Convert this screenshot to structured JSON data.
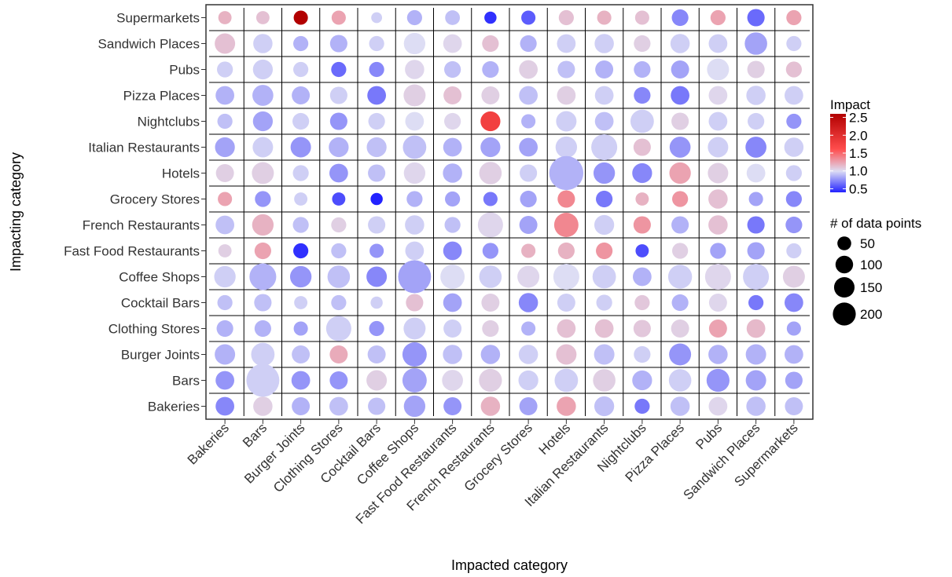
{
  "chart_data": {
    "type": "scatter",
    "xlabel": "Impacted category",
    "ylabel": "Impacting category",
    "x_categories": [
      "Bakeries",
      "Bars",
      "Burger Joints",
      "Clothing Stores",
      "Cocktail Bars",
      "Coffee Shops",
      "Fast Food Restaurants",
      "French Restaurants",
      "Grocery Stores",
      "Hotels",
      "Italian Restaurants",
      "Nightclubs",
      "Pizza Places",
      "Pubs",
      "Sandwich Places",
      "Supermarkets"
    ],
    "y_categories": [
      "Supermarkets",
      "Sandwich Places",
      "Pubs",
      "Pizza Places",
      "Nightclubs",
      "Italian Restaurants",
      "Hotels",
      "Grocery Stores",
      "French Restaurants",
      "Fast Food Restaurants",
      "Coffee Shops",
      "Cocktail Bars",
      "Clothing Stores",
      "Burger Joints",
      "Bars",
      "Bakeries"
    ],
    "impact": [
      [
        1.3,
        1.2,
        2.6,
        1.4,
        0.95,
        0.85,
        0.9,
        0.4,
        0.55,
        1.2,
        1.3,
        1.2,
        0.7,
        1.4,
        0.6,
        1.4
      ],
      [
        1.2,
        0.95,
        0.85,
        0.85,
        0.95,
        1.0,
        1.05,
        1.2,
        0.85,
        0.95,
        0.95,
        1.1,
        0.95,
        0.95,
        0.8,
        0.95
      ],
      [
        0.95,
        0.95,
        0.95,
        0.6,
        0.7,
        1.05,
        0.9,
        0.85,
        1.1,
        0.9,
        0.85,
        0.85,
        0.8,
        1.0,
        1.1,
        1.2
      ],
      [
        0.85,
        0.85,
        0.85,
        0.95,
        0.65,
        1.1,
        1.2,
        1.1,
        0.9,
        1.1,
        0.95,
        0.7,
        0.65,
        1.05,
        0.95,
        0.95
      ],
      [
        0.9,
        0.8,
        0.95,
        0.75,
        0.95,
        1.0,
        1.05,
        2.1,
        0.85,
        0.95,
        0.9,
        0.95,
        1.1,
        0.95,
        0.95,
        0.75
      ],
      [
        0.8,
        0.95,
        0.75,
        0.85,
        0.9,
        0.9,
        0.85,
        0.8,
        0.8,
        0.95,
        0.95,
        1.2,
        0.75,
        0.95,
        0.7,
        0.95
      ],
      [
        1.1,
        1.1,
        0.95,
        0.75,
        0.9,
        1.05,
        0.85,
        1.1,
        0.95,
        0.85,
        0.75,
        0.7,
        1.4,
        1.1,
        1.0,
        0.95
      ],
      [
        1.4,
        0.75,
        0.95,
        0.5,
        0.35,
        0.85,
        0.8,
        0.65,
        0.8,
        1.6,
        0.65,
        1.3,
        1.5,
        1.2,
        0.8,
        0.7
      ],
      [
        0.9,
        1.3,
        0.9,
        1.1,
        0.95,
        0.95,
        0.9,
        1.05,
        0.8,
        1.6,
        0.95,
        1.5,
        0.85,
        1.2,
        0.65,
        0.75
      ],
      [
        1.1,
        1.4,
        0.4,
        0.9,
        0.75,
        0.95,
        0.7,
        0.75,
        1.3,
        1.3,
        1.5,
        0.5,
        1.1,
        0.8,
        0.8,
        0.95
      ],
      [
        0.95,
        0.85,
        0.75,
        0.9,
        0.7,
        0.8,
        1.0,
        0.95,
        1.05,
        1.0,
        0.95,
        0.85,
        0.95,
        1.05,
        0.95,
        1.1
      ],
      [
        0.9,
        0.9,
        0.95,
        0.9,
        0.95,
        1.2,
        0.8,
        1.1,
        0.7,
        0.95,
        0.95,
        1.15,
        0.85,
        1.05,
        0.65,
        0.7
      ],
      [
        0.85,
        0.85,
        0.8,
        0.95,
        0.75,
        0.95,
        0.95,
        1.1,
        0.85,
        1.2,
        1.2,
        1.15,
        1.1,
        1.4,
        1.25,
        0.8
      ],
      [
        0.85,
        0.95,
        0.9,
        1.35,
        0.9,
        0.75,
        0.9,
        0.85,
        0.95,
        1.2,
        0.9,
        0.95,
        0.75,
        0.85,
        0.85,
        0.85
      ],
      [
        0.75,
        0.95,
        0.75,
        0.75,
        1.1,
        0.8,
        1.05,
        1.1,
        0.95,
        0.95,
        1.1,
        0.85,
        0.95,
        0.75,
        0.8,
        0.8
      ],
      [
        0.7,
        1.1,
        0.85,
        0.9,
        0.9,
        0.8,
        0.75,
        1.3,
        0.8,
        1.4,
        0.9,
        0.65,
        0.9,
        1.05,
        0.9,
        0.9
      ]
    ],
    "data_points": [
      [
        20,
        20,
        25,
        25,
        10,
        30,
        28,
        15,
        25,
        30,
        25,
        25,
        40,
        30,
        45,
        30
      ],
      [
        70,
        60,
        30,
        45,
        30,
        80,
        55,
        40,
        40,
        55,
        60,
        40,
        60,
        55,
        90,
        30
      ],
      [
        35,
        65,
        30,
        30,
        30,
        60,
        40,
        40,
        55,
        45,
        50,
        40,
        50,
        85,
        45,
        35
      ],
      [
        55,
        75,
        50,
        45,
        55,
        85,
        50,
        50,
        55,
        55,
        55,
        40,
        55,
        55,
        60,
        55
      ],
      [
        30,
        65,
        40,
        45,
        40,
        55,
        40,
        65,
        25,
        70,
        55,
        100,
        45,
        55,
        40,
        30
      ],
      [
        65,
        70,
        70,
        65,
        65,
        100,
        55,
        65,
        55,
        80,
        130,
        45,
        75,
        70,
        75,
        60
      ],
      [
        50,
        85,
        35,
        55,
        45,
        80,
        60,
        90,
        45,
        250,
        80,
        65,
        80,
        70,
        55,
        35
      ],
      [
        25,
        35,
        20,
        20,
        15,
        35,
        30,
        25,
        40,
        45,
        40,
        20,
        35,
        60,
        25,
        35
      ],
      [
        55,
        80,
        35,
        30,
        45,
        60,
        35,
        120,
        50,
        110,
        65,
        45,
        45,
        60,
        45,
        40
      ],
      [
        20,
        40,
        30,
        30,
        25,
        55,
        55,
        35,
        25,
        40,
        40,
        20,
        35,
        35,
        45,
        30
      ],
      [
        80,
        140,
        80,
        90,
        70,
        230,
        110,
        90,
        85,
        130,
        100,
        55,
        105,
        130,
        130,
        85
      ],
      [
        30,
        45,
        20,
        30,
        15,
        45,
        55,
        50,
        60,
        50,
        35,
        30,
        40,
        50,
        30,
        55
      ],
      [
        40,
        40,
        25,
        120,
        30,
        85,
        50,
        40,
        25,
        55,
        55,
        45,
        50,
        50,
        55,
        25
      ],
      [
        70,
        100,
        50,
        50,
        50,
        110,
        60,
        60,
        60,
        70,
        70,
        40,
        85,
        60,
        70,
        55
      ],
      [
        55,
        230,
        55,
        50,
        70,
        110,
        75,
        95,
        65,
        100,
        90,
        65,
        90,
        95,
        70,
        45
      ],
      [
        55,
        60,
        50,
        55,
        45,
        80,
        50,
        60,
        50,
        60,
        65,
        30,
        60,
        55,
        60,
        50
      ]
    ],
    "legend_color": {
      "title": "Impact",
      "ticks": [
        "0.5",
        "1.0",
        "1.5",
        "2.0",
        "2.5"
      ],
      "range": [
        0.4,
        2.6
      ],
      "low_color": "#2222ff",
      "mid_color": "#ddddf4",
      "high_color": "#b20000"
    },
    "legend_size": {
      "title": "# of data points",
      "values": [
        50,
        100,
        150,
        200
      ],
      "labels": [
        "50",
        "100",
        "150",
        "200"
      ]
    },
    "colors": {
      "panel_border": "#333333",
      "grid": "#000000",
      "background": "#ffffff"
    }
  }
}
